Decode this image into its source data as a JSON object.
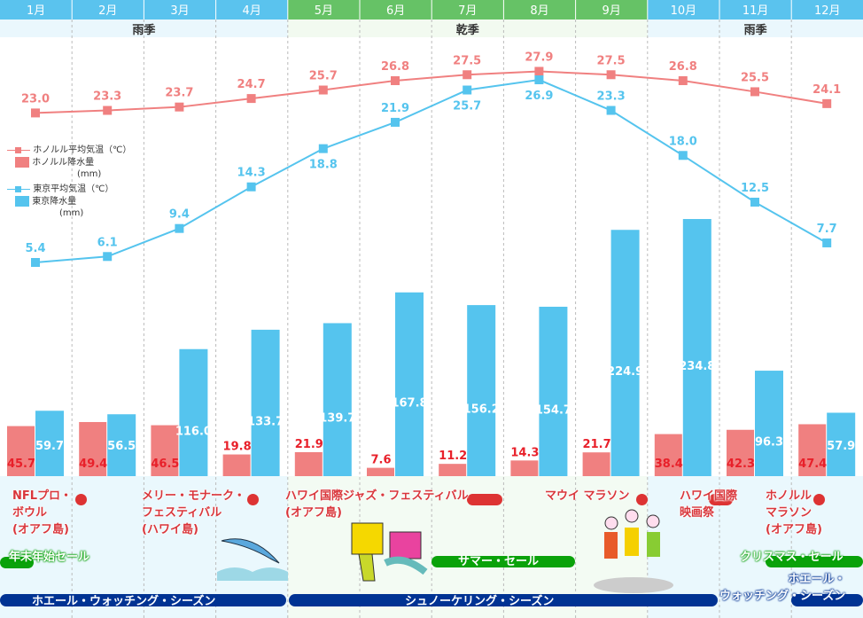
{
  "chart_data": {
    "type": "bar+line",
    "categories": [
      "1月",
      "2月",
      "3月",
      "4月",
      "5月",
      "6月",
      "7月",
      "8月",
      "9月",
      "10月",
      "11月",
      "12月"
    ],
    "seasons": [
      {
        "label": "雨季",
        "months": [
          1,
          4
        ]
      },
      {
        "label": "乾季",
        "months": [
          5,
          9
        ]
      },
      {
        "label": "雨季",
        "months": [
          10,
          12
        ]
      }
    ],
    "series": [
      {
        "name": "ホノルル平均気温（℃）",
        "type": "line",
        "color": "#f08080",
        "values": [
          23.0,
          23.3,
          23.7,
          24.7,
          25.7,
          26.8,
          27.5,
          27.9,
          27.5,
          26.8,
          25.5,
          24.1
        ]
      },
      {
        "name": "ホノルル降水量",
        "unit": "(mm)",
        "type": "bar",
        "color": "#f08080",
        "values": [
          45.7,
          49.4,
          46.5,
          19.8,
          21.9,
          7.6,
          11.2,
          14.3,
          21.7,
          38.4,
          42.3,
          47.4
        ]
      },
      {
        "name": "東京平均気温（℃）",
        "type": "line",
        "color": "#55c4ee",
        "values": [
          5.4,
          6.1,
          9.4,
          14.3,
          18.8,
          21.9,
          25.7,
          26.9,
          23.3,
          18.0,
          12.5,
          7.7
        ]
      },
      {
        "name": "東京降水量",
        "unit": "(mm)",
        "type": "bar",
        "color": "#55c4ee",
        "values": [
          59.7,
          56.5,
          116.0,
          133.7,
          139.7,
          167.8,
          156.2,
          154.7,
          224.9,
          234.8,
          96.3,
          57.9
        ]
      }
    ],
    "colors": {
      "rainy_header": "#5ac3ee",
      "dry_header": "#66c266",
      "event_red": "#d9363b",
      "sale_green": "#0aa20a",
      "season_navy": "#003393"
    }
  },
  "events": {
    "nfl": "NFLプロ・\nボウル\n(オアフ島)",
    "merrie": "メリー・モナーク・\nフェスティバル\n(ハワイ島)",
    "jazz": "ハワイ国際ジャズ・フェスティバル\n(オアフ島)",
    "maui": "マウイ マラソン",
    "film": "ハワイ国際\n映画祭",
    "marathon": "ホノルル\nマラソン\n(オアフ島)"
  },
  "sales": {
    "newyear": "年末年始セール",
    "summer": "サマー・セール",
    "christmas": "クリスマス・セール"
  },
  "seasons_bottom": {
    "whale1": "ホエール・ウォッチング・シーズン",
    "snorkel": "シュノーケリング・シーズン",
    "whale2": "ホエール・\nウォッチング・シーズン"
  }
}
